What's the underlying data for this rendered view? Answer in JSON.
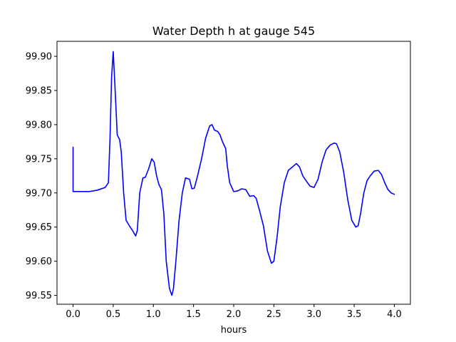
{
  "chart_data": {
    "type": "line",
    "title": "Water Depth h at gauge 545",
    "xlabel": "hours",
    "ylabel": "",
    "xlim": [
      -0.2,
      4.2
    ],
    "ylim": [
      99.537,
      99.922
    ],
    "xticks": [
      "0.0",
      "0.5",
      "1.0",
      "1.5",
      "2.0",
      "2.5",
      "3.0",
      "3.5",
      "4.0"
    ],
    "yticks": [
      "99.55",
      "99.60",
      "99.65",
      "99.70",
      "99.75",
      "99.80",
      "99.85",
      "99.90"
    ],
    "grid": false,
    "line_color": "#0000ff",
    "series": [
      {
        "x": [
          0.0,
          0.0,
          0.05,
          0.1,
          0.2,
          0.3,
          0.4,
          0.44,
          0.46,
          0.48,
          0.5,
          0.52,
          0.55,
          0.58,
          0.6,
          0.63,
          0.66,
          0.7,
          0.74,
          0.78,
          0.8,
          0.83,
          0.87,
          0.9,
          0.94,
          0.98,
          1.01,
          1.04,
          1.07,
          1.1,
          1.13,
          1.16,
          1.2,
          1.23,
          1.25,
          1.28,
          1.32,
          1.36,
          1.4,
          1.45,
          1.48,
          1.51,
          1.55,
          1.6,
          1.65,
          1.7,
          1.73,
          1.76,
          1.8,
          1.83,
          1.86,
          1.9,
          1.92,
          1.95,
          2.0,
          2.05,
          2.1,
          2.15,
          2.2,
          2.25,
          2.28,
          2.32,
          2.37,
          2.42,
          2.47,
          2.5,
          2.54,
          2.58,
          2.63,
          2.68,
          2.73,
          2.78,
          2.82,
          2.86,
          2.9,
          2.95,
          3.0,
          3.05,
          3.1,
          3.15,
          3.2,
          3.25,
          3.28,
          3.32,
          3.37,
          3.42,
          3.47,
          3.52,
          3.55,
          3.58,
          3.62,
          3.66,
          3.7,
          3.75,
          3.8,
          3.84,
          3.88,
          3.92,
          3.96,
          4.0
        ],
        "y": [
          99.767,
          99.702,
          99.702,
          99.702,
          99.702,
          99.704,
          99.708,
          99.715,
          99.78,
          99.87,
          99.907,
          99.86,
          99.785,
          99.778,
          99.76,
          99.7,
          99.66,
          99.652,
          99.645,
          99.637,
          99.645,
          99.7,
          99.722,
          99.723,
          99.735,
          99.75,
          99.745,
          99.725,
          99.712,
          99.705,
          99.67,
          99.6,
          99.56,
          99.55,
          99.56,
          99.6,
          99.66,
          99.7,
          99.722,
          99.72,
          99.706,
          99.707,
          99.725,
          99.75,
          99.78,
          99.798,
          99.8,
          99.792,
          99.79,
          99.785,
          99.775,
          99.765,
          99.74,
          99.715,
          99.702,
          99.703,
          99.706,
          99.705,
          99.695,
          99.696,
          99.692,
          99.675,
          99.652,
          99.615,
          99.597,
          99.6,
          99.635,
          99.68,
          99.715,
          99.733,
          99.738,
          99.743,
          99.738,
          99.725,
          99.718,
          99.71,
          99.708,
          99.72,
          99.745,
          99.763,
          99.77,
          99.773,
          99.772,
          99.76,
          99.73,
          99.69,
          99.66,
          99.65,
          99.652,
          99.67,
          99.7,
          99.718,
          99.725,
          99.732,
          99.733,
          99.727,
          99.715,
          99.705,
          99.7,
          99.698
        ]
      }
    ]
  }
}
